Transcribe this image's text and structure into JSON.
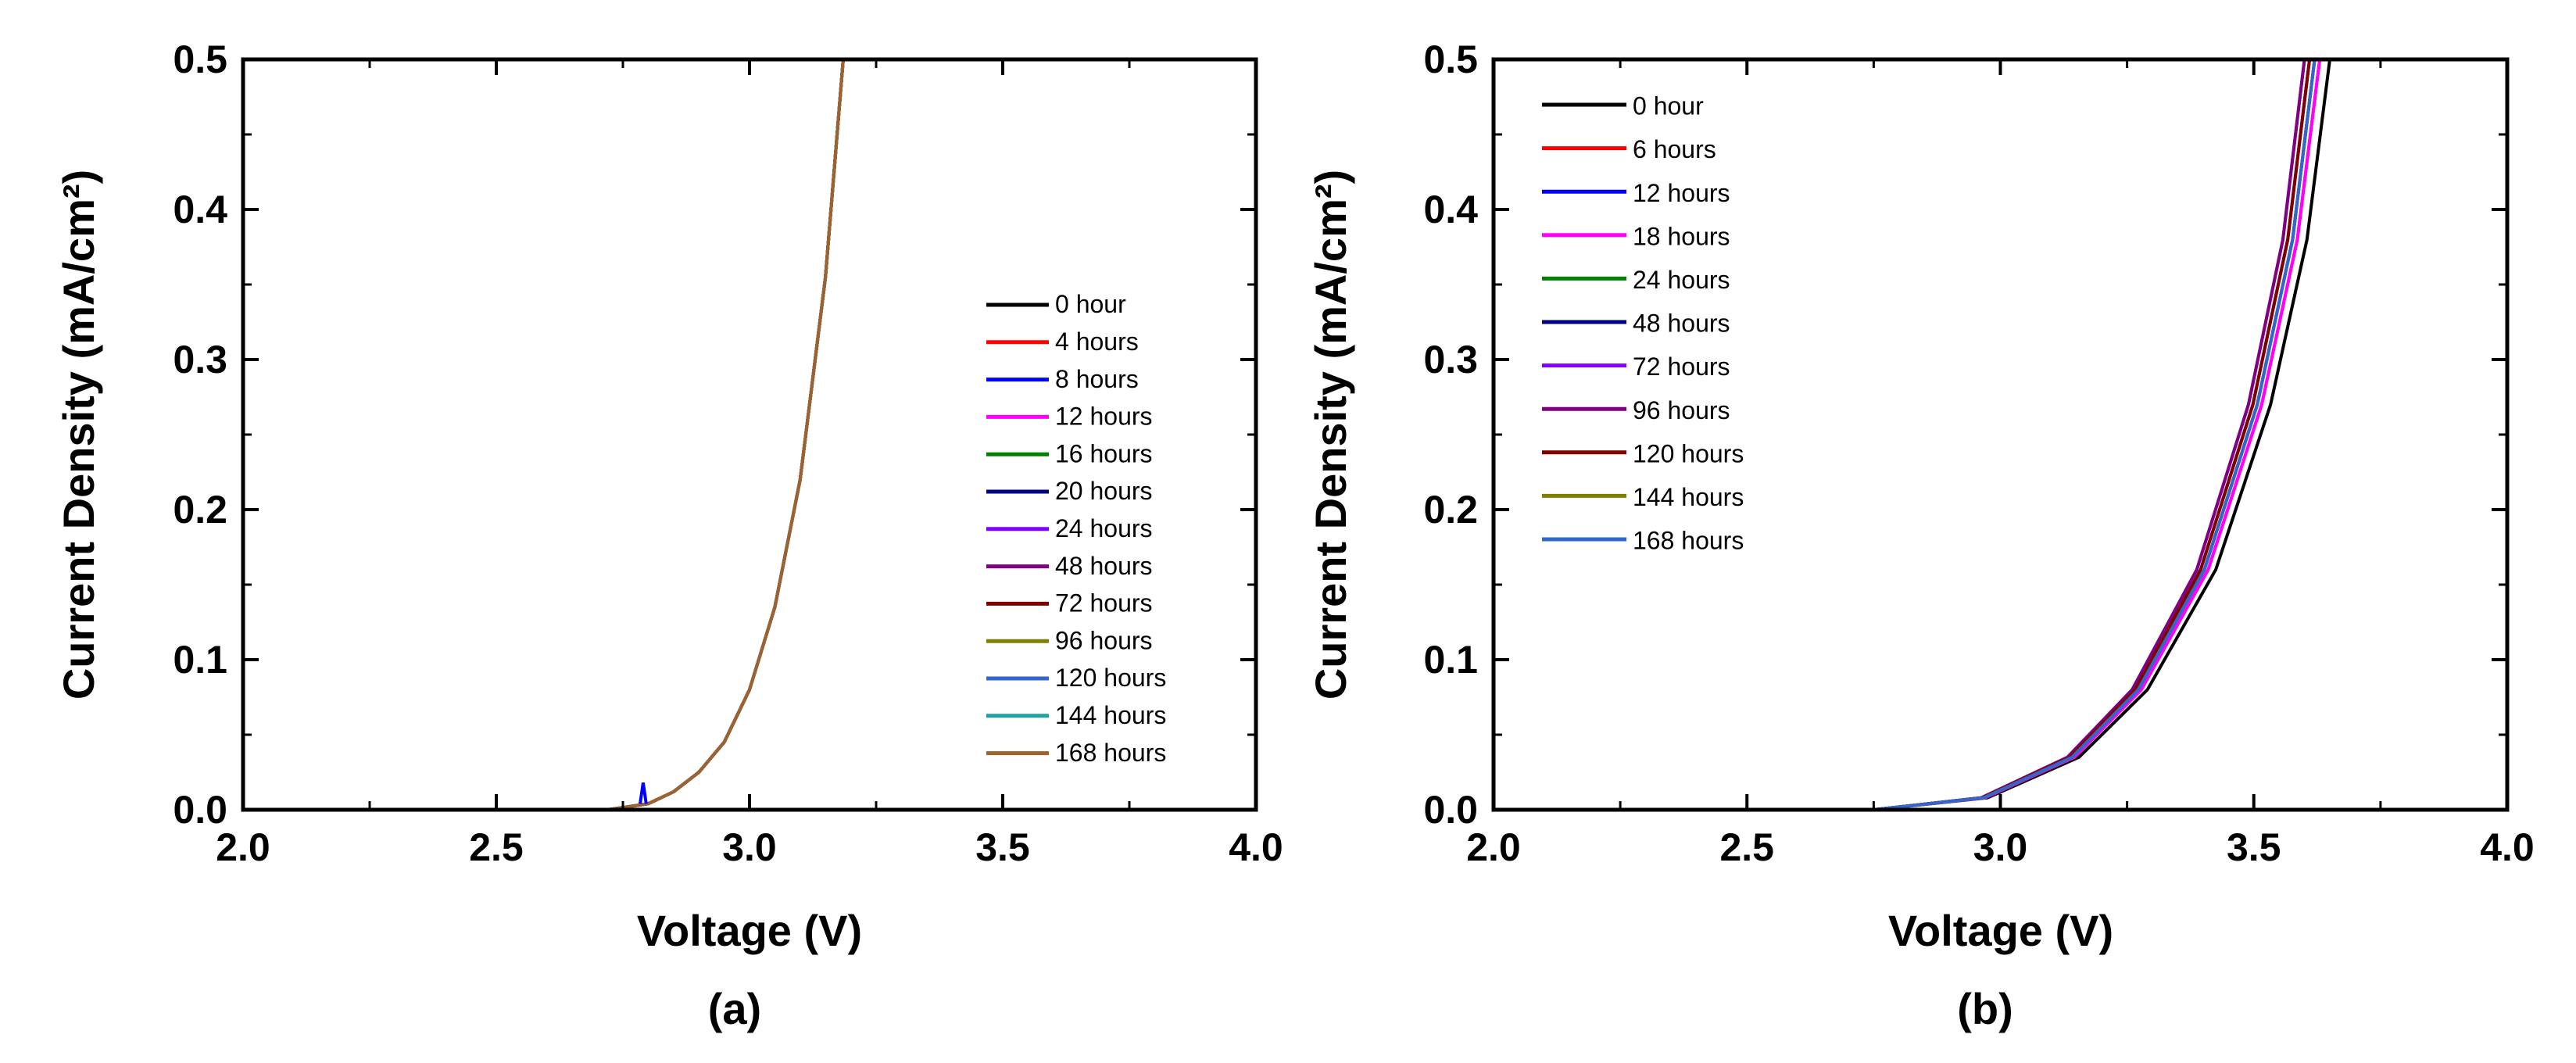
{
  "chart_data": [
    {
      "type": "line",
      "panel_label": "(a)",
      "xlabel": "Voltage (V)",
      "ylabel": "Current Density (mA/cm²)",
      "xlim": [
        2.0,
        4.0
      ],
      "ylim": [
        0.0,
        0.5
      ],
      "xticks": [
        "2.0",
        "2.5",
        "3.0",
        "3.5",
        "4.0"
      ],
      "yticks": [
        "0.0",
        "0.1",
        "0.2",
        "0.3",
        "0.4",
        "0.5"
      ],
      "legend_position": "right-middle",
      "onset_voltage": 2.72,
      "spike_voltage": 2.79,
      "series": [
        {
          "name": "0 hour",
          "color": "#000000"
        },
        {
          "name": "4 hours",
          "color": "#ff0000"
        },
        {
          "name": "8 hours",
          "color": "#0000ff"
        },
        {
          "name": "12 hours",
          "color": "#ff00ff"
        },
        {
          "name": "16 hours",
          "color": "#008000"
        },
        {
          "name": "20 hours",
          "color": "#000080"
        },
        {
          "name": "24 hours",
          "color": "#8000ff"
        },
        {
          "name": "48 hours",
          "color": "#800080"
        },
        {
          "name": "72 hours",
          "color": "#800000"
        },
        {
          "name": "96 hours",
          "color": "#808000"
        },
        {
          "name": "120 hours",
          "color": "#3366cc"
        },
        {
          "name": "144 hours",
          "color": "#20a0a0"
        },
        {
          "name": "168 hours",
          "color": "#a0622d"
        }
      ],
      "curve_points": [
        [
          2.0,
          0.0
        ],
        [
          2.72,
          0.0
        ],
        [
          2.8,
          0.004
        ],
        [
          2.85,
          0.012
        ],
        [
          2.9,
          0.025
        ],
        [
          2.95,
          0.045
        ],
        [
          3.0,
          0.08
        ],
        [
          3.05,
          0.135
        ],
        [
          3.1,
          0.22
        ],
        [
          3.15,
          0.355
        ],
        [
          3.185,
          0.5
        ]
      ]
    },
    {
      "type": "line",
      "panel_label": "(b)",
      "xlabel": "Voltage (V)",
      "ylabel": "Current Density (mA/cm²)",
      "xlim": [
        2.0,
        4.0
      ],
      "ylim": [
        0.0,
        0.5
      ],
      "xticks": [
        "2.0",
        "2.5",
        "3.0",
        "3.5",
        "4.0"
      ],
      "yticks": [
        "0.0",
        "0.1",
        "0.2",
        "0.3",
        "0.4",
        "0.5"
      ],
      "legend_position": "top-left",
      "onset_voltage": 2.75,
      "series": [
        {
          "name": "0 hour",
          "color": "#000000",
          "voltage_at_0_5": 3.65
        },
        {
          "name": "6 hours",
          "color": "#ff0000",
          "voltage_at_0_5": 3.63
        },
        {
          "name": "12 hours",
          "color": "#0000ff",
          "voltage_at_0_5": 3.62
        },
        {
          "name": "18 hours",
          "color": "#ff00ff",
          "voltage_at_0_5": 3.63
        },
        {
          "name": "24 hours",
          "color": "#008000",
          "voltage_at_0_5": 3.62
        },
        {
          "name": "48 hours",
          "color": "#000080",
          "voltage_at_0_5": 3.61
        },
        {
          "name": "72 hours",
          "color": "#8000ff",
          "voltage_at_0_5": 3.6
        },
        {
          "name": "96 hours",
          "color": "#800080",
          "voltage_at_0_5": 3.6
        },
        {
          "name": "120 hours",
          "color": "#800000",
          "voltage_at_0_5": 3.61
        },
        {
          "name": "144 hours",
          "color": "#808000",
          "voltage_at_0_5": 3.62
        },
        {
          "name": "168 hours",
          "color": "#3366cc",
          "voltage_at_0_5": 3.62
        }
      ],
      "reference_shape": [
        [
          0.0,
          0.0
        ],
        [
          0.25,
          0.008
        ],
        [
          0.45,
          0.035
        ],
        [
          0.6,
          0.08
        ],
        [
          0.75,
          0.16
        ],
        [
          0.87,
          0.27
        ],
        [
          0.95,
          0.38
        ],
        [
          1.0,
          0.5
        ]
      ]
    }
  ]
}
